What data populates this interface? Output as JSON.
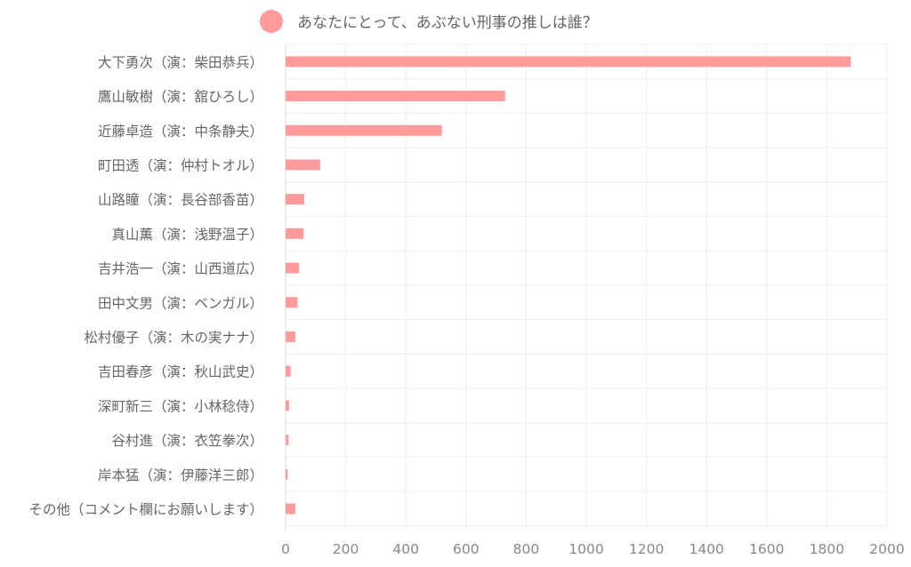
{
  "chart_data": {
    "type": "bar",
    "orientation": "horizontal",
    "title": "",
    "xlabel": "",
    "ylabel": "",
    "legend": {
      "position": "top-center",
      "entries": [
        {
          "label": "あなたにとって、あぶない刑事の推しは誰？",
          "color": "#ff9b9b"
        }
      ]
    },
    "series_color": "#ff9b9b",
    "categories": [
      "大下勇次（演：柴田恭兵）",
      "鷹山敏樹（演：舘ひろし）",
      "近藤卓造（演：中条静夫）",
      "町田透（演：仲村トオル）",
      "山路瞳（演：長谷部香苗）",
      "真山薫（演：浅野温子）",
      "吉井浩一（演：山西道広）",
      "田中文男（演：ベンガル）",
      "松村優子（演：木の実ナナ）",
      "吉田春彦（演：秋山武史）",
      "深町新三（演：小林稔侍）",
      "谷村進（演：衣笠拳次）",
      "岸本猛（演：伊藤洋三郎）",
      "その他（コメント欄にお願いします）"
    ],
    "values": [
      1880,
      730,
      520,
      115,
      62,
      60,
      45,
      40,
      33,
      17,
      12,
      10,
      7,
      33
    ],
    "xlim": [
      0,
      2000
    ],
    "xticks": [
      0,
      200,
      400,
      600,
      800,
      1000,
      1200,
      1400,
      1600,
      1800,
      2000
    ],
    "xtick_labels": [
      "0",
      "200",
      "400",
      "600",
      "800",
      "1000",
      "1200",
      "1400",
      "1600",
      "1800",
      "2000"
    ],
    "grid": true
  }
}
